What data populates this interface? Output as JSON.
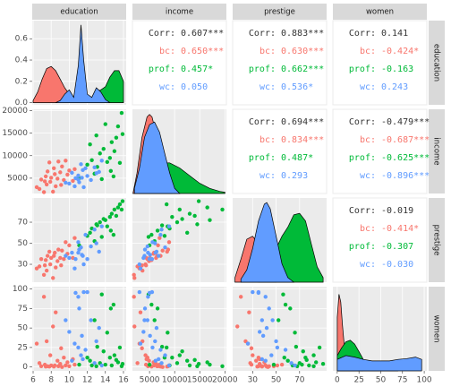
{
  "chart_data": {
    "type": "pairs",
    "variables": [
      {
        "name": "education",
        "lim": [
          5.9,
          16.3
        ],
        "ticks": [
          6,
          8,
          10,
          12,
          14,
          16
        ]
      },
      {
        "name": "income",
        "lim": [
          1600,
          20300
        ],
        "ticks": [
          5000,
          10000,
          15000,
          20000
        ]
      },
      {
        "name": "prestige",
        "lim": [
          13,
          93
        ],
        "ticks": [
          30,
          50,
          70
        ]
      },
      {
        "name": "women",
        "lim": [
          -5,
          103
        ],
        "ticks": [
          0,
          25,
          50,
          75,
          100
        ]
      }
    ],
    "series": [
      {
        "name": "bc",
        "color": "#F8766D",
        "education": [
          6.4,
          6.7,
          6.9,
          7.2,
          7.3,
          7.4,
          7.5,
          7.6,
          7.8,
          7.9,
          8.0,
          8.2,
          8.3,
          8.4,
          8.5,
          8.7,
          8.8,
          9.0,
          9.1,
          9.2,
          9.4,
          9.6,
          9.8,
          10.0,
          10.4,
          10.6
        ],
        "income": [
          3000,
          2600,
          4700,
          1900,
          4300,
          5400,
          3600,
          6500,
          8500,
          4200,
          5100,
          2000,
          7200,
          5900,
          3200,
          4900,
          8700,
          6300,
          3500,
          7600,
          4600,
          8900,
          5800,
          6700,
          4400,
          7000
        ],
        "prestige": [
          26,
          28,
          35,
          20,
          29,
          34,
          24,
          38,
          42,
          30,
          36,
          17,
          38,
          41,
          27,
          33,
          44,
          36,
          29,
          43,
          35,
          51,
          40,
          48,
          36,
          55
        ],
        "women": [
          30,
          5,
          1,
          90,
          3,
          0.5,
          33,
          1,
          0.5,
          15,
          2,
          52,
          0.5,
          2,
          70,
          8,
          1,
          4,
          24,
          0,
          12,
          2,
          6,
          1,
          10,
          3
        ]
      },
      {
        "name": "prof",
        "color": "#00BA38",
        "education": [
          11.1,
          12.0,
          12.3,
          12.5,
          12.8,
          13.0,
          13.1,
          13.4,
          13.6,
          13.8,
          14.0,
          14.2,
          14.5,
          14.6,
          14.7,
          14.9,
          15.0,
          15.2,
          15.4,
          15.6,
          15.8,
          15.9
        ],
        "income": [
          5000,
          8000,
          12500,
          9000,
          6000,
          14500,
          7500,
          10500,
          4800,
          11500,
          17000,
          8600,
          9500,
          6600,
          13000,
          5400,
          11000,
          14000,
          16500,
          8400,
          19500,
          14800
        ],
        "prestige": [
          48,
          57,
          60,
          64,
          52,
          68,
          67,
          70,
          56,
          73,
          72,
          66,
          75,
          62,
          78,
          58,
          82,
          76,
          84,
          87,
          82,
          90
        ],
        "women": [
          3,
          12,
          8,
          2,
          60,
          1,
          26,
          5,
          93,
          20,
          3,
          44,
          12,
          75,
          2,
          80,
          15,
          9,
          6,
          25,
          1,
          4
        ]
      },
      {
        "name": "wc",
        "color": "#619CFF",
        "education": [
          9.6,
          10.0,
          10.3,
          10.6,
          10.7,
          11.0,
          11.0,
          11.1,
          11.3,
          11.4,
          11.5,
          11.6,
          11.8,
          12.0,
          12.4,
          12.8,
          13.0,
          13.3,
          13.6
        ],
        "income": [
          4000,
          3800,
          6200,
          3200,
          5000,
          4700,
          5600,
          4100,
          8100,
          5100,
          6800,
          3000,
          7200,
          5500,
          4600,
          7400,
          6100,
          6400,
          8900
        ],
        "prestige": [
          38,
          36,
          41,
          26,
          35,
          41,
          51,
          44,
          46,
          39,
          38,
          30,
          58,
          35,
          47,
          63,
          50,
          42,
          66
        ],
        "women": [
          60,
          45,
          8,
          30,
          95,
          90,
          25,
          75,
          15,
          40,
          10,
          96,
          22,
          96,
          60,
          5,
          33,
          50,
          2
        ]
      }
    ],
    "densities": [
      {
        "ylim": [
          -0.02,
          0.77
        ],
        "yticks": [
          {
            "value": 0,
            "label": "0.0"
          },
          0.2,
          0.4,
          0.6
        ],
        "series": [
          {
            "x": [
              6,
              6.5,
              7,
              7.5,
              8,
              8.5,
              9,
              9.5,
              10,
              10.5,
              11
            ],
            "y": [
              0.02,
              0.1,
              0.22,
              0.32,
              0.34,
              0.3,
              0.22,
              0.14,
              0.08,
              0.04,
              0.01
            ]
          },
          {
            "x": [
              12,
              12.5,
              13,
              13.5,
              14,
              14.5,
              15,
              15.5,
              16
            ],
            "y": [
              0,
              0.03,
              0.1,
              0.12,
              0.15,
              0.24,
              0.3,
              0.3,
              0.2
            ]
          },
          {
            "x": [
              8.5,
              9,
              9.5,
              10,
              10.5,
              11,
              11.3,
              11.6,
              12,
              12.5,
              13,
              13.5,
              14,
              14.5
            ],
            "y": [
              0,
              0.02,
              0.08,
              0.12,
              0.05,
              0.35,
              0.73,
              0.4,
              0.08,
              0.05,
              0.14,
              0.1,
              0.03,
              0
            ]
          }
        ]
      },
      {
        "ylim": [
          0,
          0.00033
        ],
        "series": [
          {
            "x": [
              1700,
              2500,
              3500,
              4500,
              5000,
              5500,
              6500,
              7500,
              8500,
              9500
            ],
            "y": [
              0,
              8e-05,
              0.00022,
              0.0003,
              0.00031,
              0.0003,
              0.00022,
              0.00012,
              4e-05,
              0
            ]
          },
          {
            "x": [
              3000,
              5000,
              7000,
              8000,
              9000,
              11000,
              13000,
              15000,
              17000,
              19000,
              20000
            ],
            "y": [
              0,
              5e-05,
              0.00011,
              0.00012,
              0.00012,
              0.0001,
              7e-05,
              4e-05,
              2e-05,
              8e-06,
              5e-06
            ]
          },
          {
            "x": [
              2000,
              3000,
              4000,
              5000,
              6000,
              7000,
              8000,
              9000,
              10000,
              11000
            ],
            "y": [
              2e-05,
              0.0001,
              0.00022,
              0.00027,
              0.00028,
              0.00024,
              0.00016,
              8e-05,
              2e-05,
              0
            ]
          }
        ]
      },
      {
        "ylim": [
          0,
          0.055
        ],
        "series": [
          {
            "x": [
              15,
              20,
              25,
              30,
              35,
              40,
              45,
              50
            ],
            "y": [
              0.003,
              0.015,
              0.028,
              0.03,
              0.025,
              0.015,
              0.006,
              0.001
            ]
          },
          {
            "x": [
              35,
              45,
              50,
              55,
              60,
              65,
              70,
              75,
              80,
              85,
              90
            ],
            "y": [
              0.002,
              0.01,
              0.022,
              0.03,
              0.036,
              0.044,
              0.045,
              0.04,
              0.025,
              0.01,
              0.003
            ]
          },
          {
            "x": [
              20,
              25,
              30,
              35,
              40,
              42,
              45,
              50,
              55,
              60,
              65
            ],
            "y": [
              0.002,
              0.008,
              0.022,
              0.04,
              0.051,
              0.052,
              0.048,
              0.03,
              0.012,
              0.003,
              0
            ]
          }
        ]
      },
      {
        "ylim": [
          0,
          0.11
        ],
        "series": [
          {
            "x": [
              0,
              2,
              4,
              6,
              8,
              10,
              15,
              20,
              30
            ],
            "y": [
              0.07,
              0.1,
              0.09,
              0.06,
              0.035,
              0.02,
              0.008,
              0.003,
              0
            ]
          },
          {
            "x": [
              0,
              5,
              10,
              15,
              20,
              25,
              30,
              40,
              50,
              60,
              70
            ],
            "y": [
              0.02,
              0.03,
              0.038,
              0.04,
              0.035,
              0.025,
              0.015,
              0.006,
              0.003,
              0.002,
              0
            ]
          },
          {
            "x": [
              0,
              10,
              20,
              30,
              40,
              50,
              60,
              70,
              80,
              90,
              97
            ],
            "y": [
              0.015,
              0.02,
              0.018,
              0.015,
              0.013,
              0.013,
              0.013,
              0.015,
              0.016,
              0.018,
              0.015
            ]
          }
        ]
      }
    ],
    "correlations": [
      [
        {
          "label": "Corr:",
          "value": "0.607***"
        },
        {
          "label": "bc:",
          "value": "0.650***"
        },
        {
          "label": "prof:",
          "value": "0.457*"
        },
        {
          "label": "wc:",
          "value": "0.050"
        }
      ],
      [
        {
          "label": "Corr:",
          "value": "0.883***"
        },
        {
          "label": "bc:",
          "value": "0.630***"
        },
        {
          "label": "prof:",
          "value": "0.662***"
        },
        {
          "label": "wc:",
          "value": "0.536*"
        }
      ],
      [
        {
          "label": "Corr:",
          "value": "0.141"
        },
        {
          "label": "bc:",
          "value": "-0.424*"
        },
        {
          "label": "prof:",
          "value": "-0.163"
        },
        {
          "label": "wc:",
          "value": "0.243"
        }
      ],
      [
        {
          "label": "Corr:",
          "value": "0.694***"
        },
        {
          "label": "bc:",
          "value": "0.834***"
        },
        {
          "label": "prof:",
          "value": "0.487*"
        },
        {
          "label": "wc:",
          "value": "0.293"
        }
      ],
      [
        {
          "label": "Corr:",
          "value": "-0.479***"
        },
        {
          "label": "bc:",
          "value": "-0.687***"
        },
        {
          "label": "prof:",
          "value": "-0.625***"
        },
        {
          "label": "wc:",
          "value": "-0.896***"
        }
      ],
      [
        {
          "label": "Corr:",
          "value": "-0.019"
        },
        {
          "label": "bc:",
          "value": "-0.414*"
        },
        {
          "label": "prof:",
          "value": "-0.307"
        },
        {
          "label": "wc:",
          "value": "-0.030"
        }
      ]
    ]
  }
}
